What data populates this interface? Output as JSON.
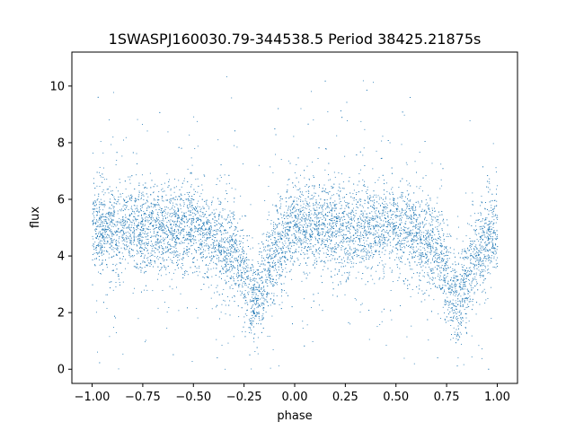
{
  "chart_data": {
    "type": "scatter",
    "title": "1SWASPJ160030.79-344538.5 Period 38425.21875s",
    "xlabel": "phase",
    "ylabel": "flux",
    "xlim": [
      -1.1,
      1.1
    ],
    "ylim": [
      -0.5,
      11.2
    ],
    "x_ticks": [
      -1.0,
      -0.75,
      -0.5,
      -0.25,
      0.0,
      0.25,
      0.5,
      0.75,
      1.0
    ],
    "x_tick_labels": [
      "−1.00",
      "−0.75",
      "−0.50",
      "−0.25",
      "0.00",
      "0.25",
      "0.50",
      "0.75",
      "1.00"
    ],
    "y_ticks": [
      0,
      2,
      4,
      6,
      8,
      10
    ],
    "y_tick_labels": [
      "0",
      "2",
      "4",
      "6",
      "8",
      "10"
    ],
    "grid": false,
    "legend": "none",
    "series": [
      {
        "color": "#1f77b4",
        "description_of_trend": [
          {
            "x": -1.0,
            "y": 5.0
          },
          {
            "x": -0.75,
            "y": 5.0
          },
          {
            "x": -0.5,
            "y": 5.0
          },
          {
            "x": -0.3,
            "y": 4.2
          },
          {
            "x": -0.2,
            "y": 2.3
          },
          {
            "x": -0.1,
            "y": 4.2
          },
          {
            "x": 0.0,
            "y": 5.0
          },
          {
            "x": 0.25,
            "y": 5.0
          },
          {
            "x": 0.5,
            "y": 5.0
          },
          {
            "x": 0.7,
            "y": 4.2
          },
          {
            "x": 0.8,
            "y": 2.3
          },
          {
            "x": 0.9,
            "y": 4.2
          },
          {
            "x": 1.0,
            "y": 5.0
          }
        ]
      }
    ]
  }
}
